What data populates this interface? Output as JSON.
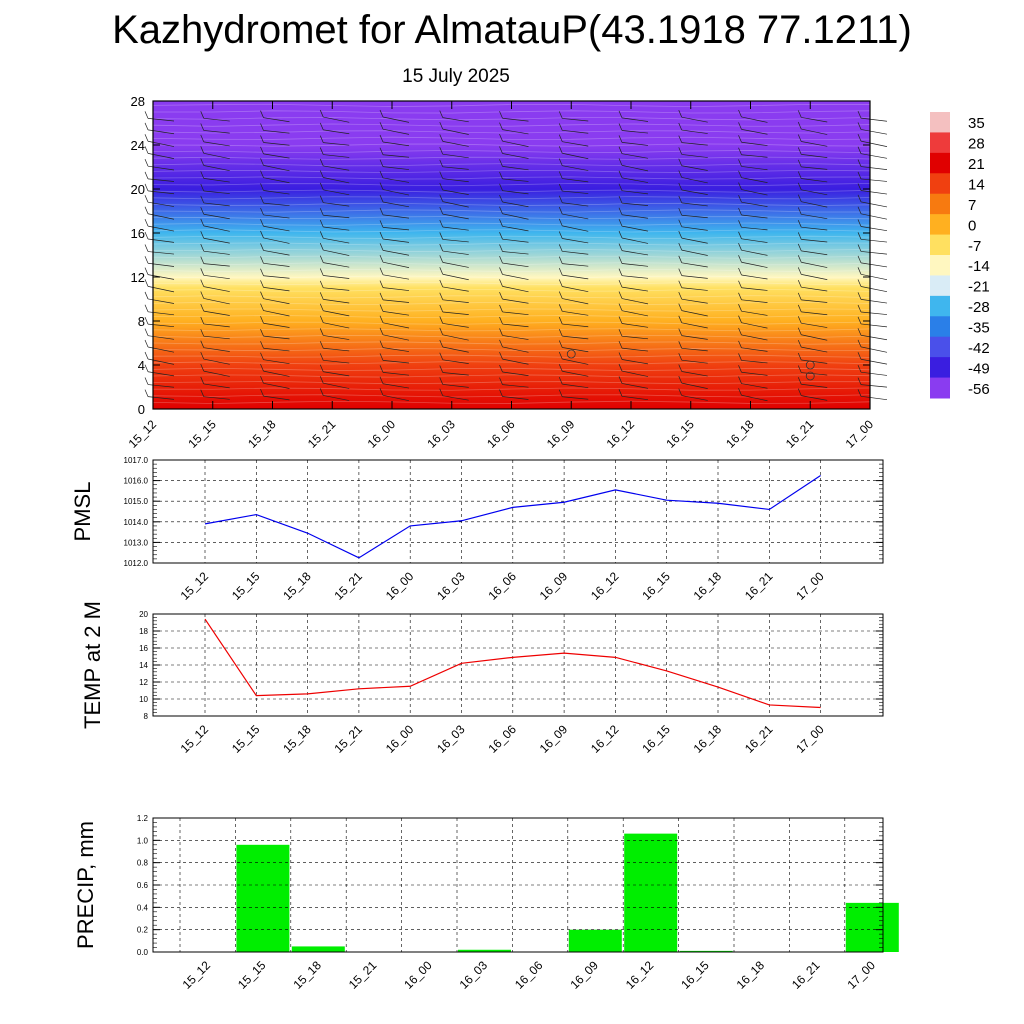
{
  "title": "Kazhydromet for AlmatauP(43.1918 77.1211)",
  "subtitle": "15 July 2025",
  "chart_data": [
    {
      "type": "heatmap",
      "name": "temperature-height",
      "x": [
        "15_12",
        "15_15",
        "15_18",
        "15_21",
        "16_00",
        "16_03",
        "16_06",
        "16_09",
        "16_12",
        "16_15",
        "16_18",
        "16_21",
        "17_00"
      ],
      "yticks": [
        0,
        4,
        8,
        12,
        16,
        20,
        24,
        28
      ],
      "ylim": [
        0,
        28
      ],
      "colorbar": {
        "labels": [
          "35",
          "28",
          "21",
          "14",
          "7",
          "0",
          "-7",
          "-14",
          "-21",
          "-28",
          "-35",
          "-42",
          "-49",
          "-56"
        ],
        "colors": [
          "#f4c0c0",
          "#ee3b3b",
          "#e00000",
          "#f04010",
          "#f77a10",
          "#ffb020",
          "#ffe060",
          "#fff7c0",
          "#d9ecf6",
          "#3fb6ee",
          "#2a7fe8",
          "#4a50ea",
          "#3a1ee0",
          "#8a3cf0"
        ]
      },
      "levels": [
        {
          "height": 0,
          "temp": 20
        },
        {
          "height": 4,
          "temp": 10
        },
        {
          "height": 8,
          "temp": -3
        },
        {
          "height": 11,
          "temp": -11
        },
        {
          "height": 12,
          "temp": -17
        },
        {
          "height": 16,
          "temp": -30
        },
        {
          "height": 20,
          "temp": -52
        },
        {
          "height": 24,
          "temp": -58
        },
        {
          "height": 28,
          "temp": -60
        }
      ]
    },
    {
      "type": "line",
      "name": "pmsl",
      "ylabel": "PMSL",
      "x": [
        "15_12",
        "15_15",
        "15_18",
        "15_21",
        "16_00",
        "16_03",
        "16_06",
        "16_09",
        "16_12",
        "16_15",
        "16_18",
        "16_21",
        "17_00"
      ],
      "values": [
        1013.9,
        1014.35,
        1013.45,
        1012.25,
        1013.8,
        1014.05,
        1014.7,
        1014.95,
        1015.55,
        1015.05,
        1014.9,
        1014.6,
        1016.25
      ],
      "ylim": [
        1012,
        1017
      ],
      "yticks": [
        "1012.0",
        "1013.0",
        "1014.0",
        "1015.0",
        "1016.0",
        "1017.0"
      ],
      "color": "#0000ee"
    },
    {
      "type": "line",
      "name": "temp2m",
      "ylabel": "TEMP at 2 M",
      "x": [
        "15_12",
        "15_15",
        "15_18",
        "15_21",
        "16_00",
        "16_03",
        "16_06",
        "16_09",
        "16_12",
        "16_15",
        "16_18",
        "16_21",
        "17_00"
      ],
      "values": [
        19.4,
        10.4,
        10.6,
        11.2,
        11.5,
        14.2,
        14.9,
        15.4,
        14.9,
        13.3,
        11.4,
        9.3,
        9.0
      ],
      "ylim": [
        8,
        20
      ],
      "yticks": [
        "8",
        "10",
        "12",
        "14",
        "16",
        "18",
        "20"
      ],
      "color": "#ee0000"
    },
    {
      "type": "bar",
      "name": "precip",
      "ylabel": "PRECIP, mm",
      "x": [
        "15_12",
        "15_15",
        "15_18",
        "15_21",
        "16_00",
        "16_03",
        "16_06",
        "16_09",
        "16_12",
        "16_15",
        "16_18",
        "16_21",
        "17_00"
      ],
      "values": [
        0,
        0.96,
        0.05,
        0,
        0,
        0.02,
        0,
        0.2,
        1.06,
        0.01,
        0,
        0,
        0.44
      ],
      "ylim": [
        0,
        1.2
      ],
      "yticks": [
        "0.0",
        "0.2",
        "0.4",
        "0.6",
        "0.8",
        "1.0",
        "1.2"
      ],
      "color": "#00ee00"
    }
  ]
}
